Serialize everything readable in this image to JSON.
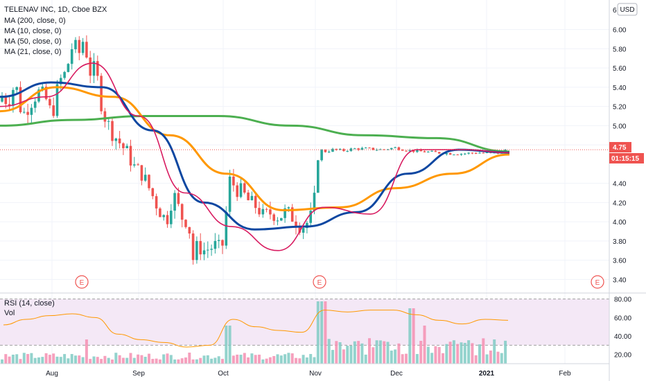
{
  "header": {
    "symbol_line": "TELENAV INC, 1D, Cboe BZX",
    "currency": "USD",
    "indicators": [
      "MA (200, close, 0)",
      "MA (10, close, 0)",
      "MA (50, close, 0)",
      "MA (21, close, 0)"
    ]
  },
  "price_badge": {
    "last": "4.75",
    "countdown": "01:15:15"
  },
  "rsi_panel": {
    "labels": [
      "RSI (14, close)",
      "Vol"
    ],
    "ticks": [
      "80.00",
      "60.00",
      "40.00",
      "20.00"
    ]
  },
  "colors": {
    "up": "#26a69a",
    "down": "#ef5350",
    "ma200": "#4caf50",
    "ma10": "#d81b60",
    "ma50": "#ff9800",
    "ma21": "#0d47a1",
    "rsi": "#ff9800",
    "rsi_band": "#e1bee7",
    "badge_price": "#ef5350",
    "badge_time": "#ef5350"
  },
  "earnings_markers": [
    {
      "date": "2020-08-13",
      "label": "E"
    },
    {
      "date": "2020-11-03",
      "label": "E"
    },
    {
      "date": "2021-02-20",
      "label": "E"
    }
  ],
  "chart_data": [
    {
      "type": "candlestick",
      "title": "TELENAV INC, 1D, Cboe BZX",
      "xlabel": "",
      "ylabel": "",
      "x_tick_labels": [
        "Aug",
        "Sep",
        "Oct",
        "Nov",
        "Dec",
        "2021",
        "Feb"
      ],
      "y_tick_labels": [
        "6.00",
        "5.80",
        "5.60",
        "5.40",
        "5.20",
        "5.00",
        "4.80",
        "4.40",
        "4.20",
        "4.00",
        "3.80",
        "3.60",
        "3.40"
      ],
      "y_top_partial_label": "6",
      "ylim": [
        3.28,
        6.25
      ],
      "ohlc_approx": [
        {
          "p": "Jul 20",
          "close": 5.35
        },
        {
          "p": "Aug 1",
          "close": 5.1
        },
        {
          "p": "Aug 7",
          "close": 5.75
        },
        {
          "p": "Aug 12",
          "close": 5.95
        },
        {
          "p": "Aug 18",
          "close": 5.6
        },
        {
          "p": "Aug 25",
          "close": 4.95
        },
        {
          "p": "Sep 1",
          "close": 4.6
        },
        {
          "p": "Sep 10",
          "close": 4.2
        },
        {
          "p": "Sep 21",
          "close": 3.5
        },
        {
          "p": "Sep 28",
          "close": 3.7
        },
        {
          "p": "Oct 2",
          "close": 4.45
        },
        {
          "p": "Oct 14",
          "close": 4.1
        },
        {
          "p": "Oct 28",
          "close": 4.0
        },
        {
          "p": "Nov 2",
          "close": 4.75
        },
        {
          "p": "Dec 1",
          "close": 4.77
        },
        {
          "p": "Jan 8",
          "close": 4.75
        }
      ],
      "series": [
        {
          "name": "MA (200, close, 0)",
          "values": [
            5.0,
            5.06,
            5.1,
            5.1,
            5.0,
            4.9,
            4.87,
            4.73
          ]
        },
        {
          "name": "MA (10, close, 0)",
          "values": [
            5.2,
            5.3,
            5.65,
            5.1,
            4.3,
            3.95,
            3.7,
            4.15,
            4.08,
            4.75,
            4.75,
            4.72
          ]
        },
        {
          "name": "MA (50, close, 0)",
          "values": [
            5.15,
            5.4,
            5.3,
            4.9,
            4.5,
            4.12,
            4.15,
            4.35,
            4.5,
            4.7
          ]
        },
        {
          "name": "MA (21, close, 0)",
          "values": [
            5.3,
            5.45,
            5.4,
            4.95,
            4.2,
            3.92,
            3.95,
            4.1,
            4.5,
            4.75,
            4.72
          ]
        }
      ]
    },
    {
      "type": "line",
      "title": "RSI (14, close)",
      "ylim": [
        10,
        85
      ],
      "y_tick_labels": [
        "80.00",
        "60.00",
        "40.00",
        "20.00"
      ],
      "bands": [
        30,
        70
      ],
      "series": [
        {
          "name": "RSI (14, close)",
          "values": [
            52,
            58,
            62,
            64,
            60,
            42,
            36,
            33,
            28,
            30,
            58,
            50,
            46,
            44,
            68,
            66,
            68,
            68,
            63,
            57,
            53,
            58,
            57
          ]
        }
      ]
    }
  ]
}
